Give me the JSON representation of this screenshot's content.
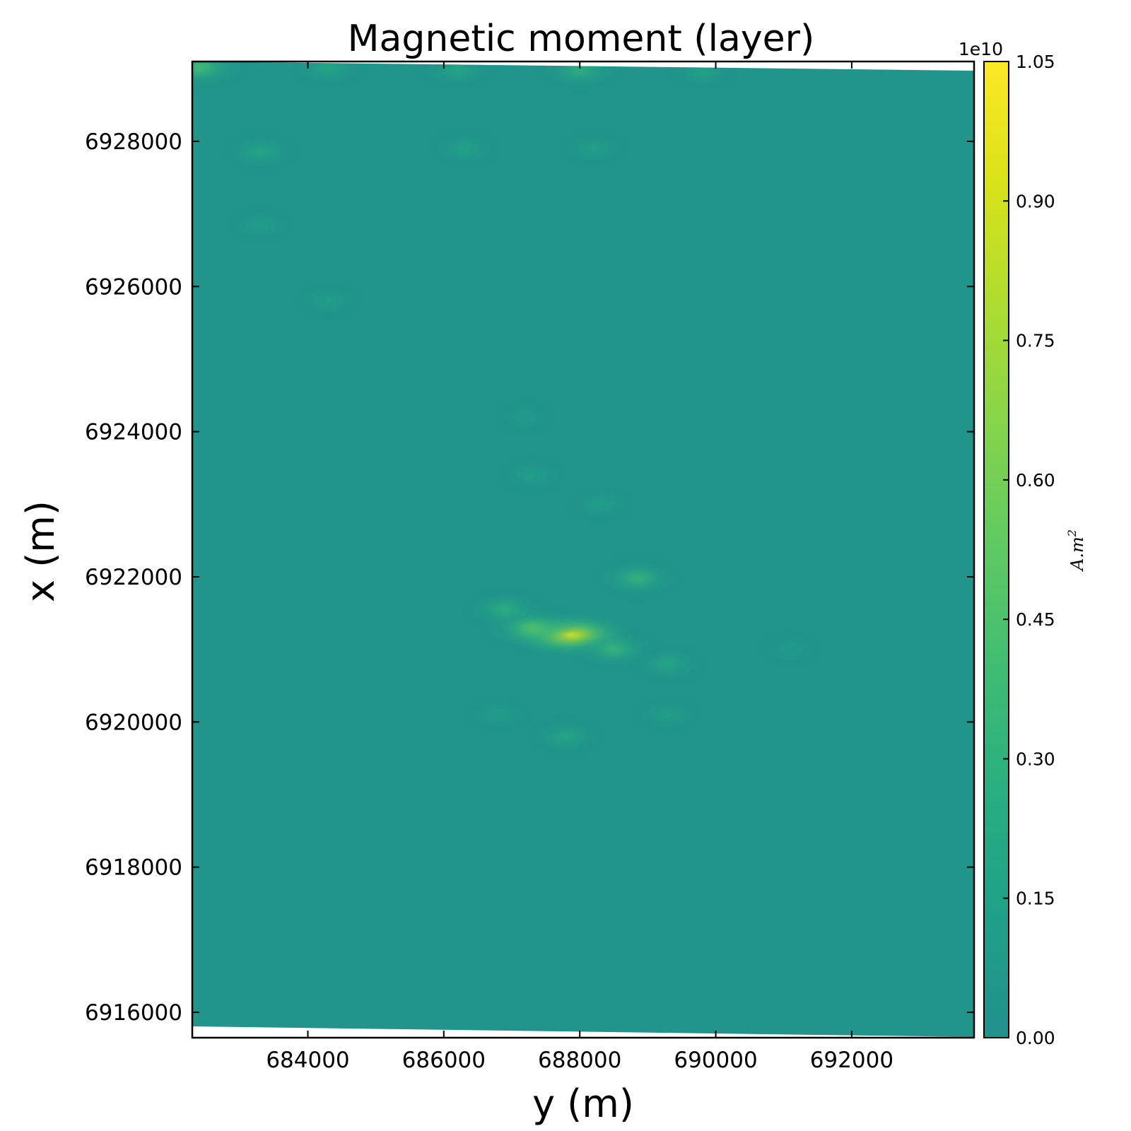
{
  "chart_data": {
    "type": "heatmap",
    "title": "Magnetic moment (layer)",
    "xlabel": "y (m)",
    "ylabel": "x (m)",
    "xlim": [
      682300,
      693800
    ],
    "ylim": [
      6915650,
      6929100
    ],
    "x_ticks": [
      684000,
      686000,
      688000,
      690000,
      692000
    ],
    "x_tick_labels": [
      "684000",
      "686000",
      "688000",
      "690000",
      "692000"
    ],
    "y_ticks": [
      6916000,
      6918000,
      6920000,
      6922000,
      6924000,
      6926000,
      6928000
    ],
    "y_tick_labels": [
      "6916000",
      "6918000",
      "6920000",
      "6922000",
      "6924000",
      "6926000",
      "6928000"
    ],
    "colorbar": {
      "label": "A.m",
      "label_superscript": "2",
      "exponent_label": "1e10",
      "range": [
        0.0,
        1.05
      ],
      "ticks": [
        0.0,
        0.15,
        0.3,
        0.45,
        0.6,
        0.75,
        0.9,
        1.05
      ],
      "tick_labels": [
        "0.00",
        "0.15",
        "0.30",
        "0.45",
        "0.60",
        "0.75",
        "0.90",
        "1.05"
      ],
      "colormap": "viridis",
      "colors": [
        "#21918c",
        "#1fa088",
        "#28ae80",
        "#3fbc73",
        "#5ec962",
        "#84d44b",
        "#addc30",
        "#d8e219",
        "#fde725"
      ]
    },
    "background_value": 0.03,
    "anomalies": [
      {
        "y": 687850,
        "x": 6921200,
        "value": 1.0
      },
      {
        "y": 687300,
        "x": 6921300,
        "value": 0.6
      },
      {
        "y": 686900,
        "x": 6921550,
        "value": 0.4
      },
      {
        "y": 688500,
        "x": 6921000,
        "value": 0.45
      },
      {
        "y": 689300,
        "x": 6920800,
        "value": 0.3
      },
      {
        "y": 688850,
        "x": 6921980,
        "value": 0.45
      },
      {
        "y": 687800,
        "x": 6919800,
        "value": 0.3
      },
      {
        "y": 686800,
        "x": 6920100,
        "value": 0.2
      },
      {
        "y": 689300,
        "x": 6920100,
        "value": 0.22
      },
      {
        "y": 688300,
        "x": 6923000,
        "value": 0.2
      },
      {
        "y": 687300,
        "x": 6923400,
        "value": 0.2
      },
      {
        "y": 687200,
        "x": 6924200,
        "value": 0.15
      },
      {
        "y": 683300,
        "x": 6927850,
        "value": 0.3
      },
      {
        "y": 686300,
        "x": 6927900,
        "value": 0.25
      },
      {
        "y": 688200,
        "x": 6927900,
        "value": 0.22
      },
      {
        "y": 683300,
        "x": 6926850,
        "value": 0.2
      },
      {
        "y": 684300,
        "x": 6925800,
        "value": 0.2
      },
      {
        "y": 686200,
        "x": 6928980,
        "value": 0.3
      },
      {
        "y": 688000,
        "x": 6928980,
        "value": 0.4
      },
      {
        "y": 682400,
        "x": 6929020,
        "value": 0.55
      },
      {
        "y": 684300,
        "x": 6929000,
        "value": 0.3
      },
      {
        "y": 689800,
        "x": 6928960,
        "value": 0.25
      },
      {
        "y": 691100,
        "x": 6921000,
        "value": 0.15
      }
    ]
  }
}
